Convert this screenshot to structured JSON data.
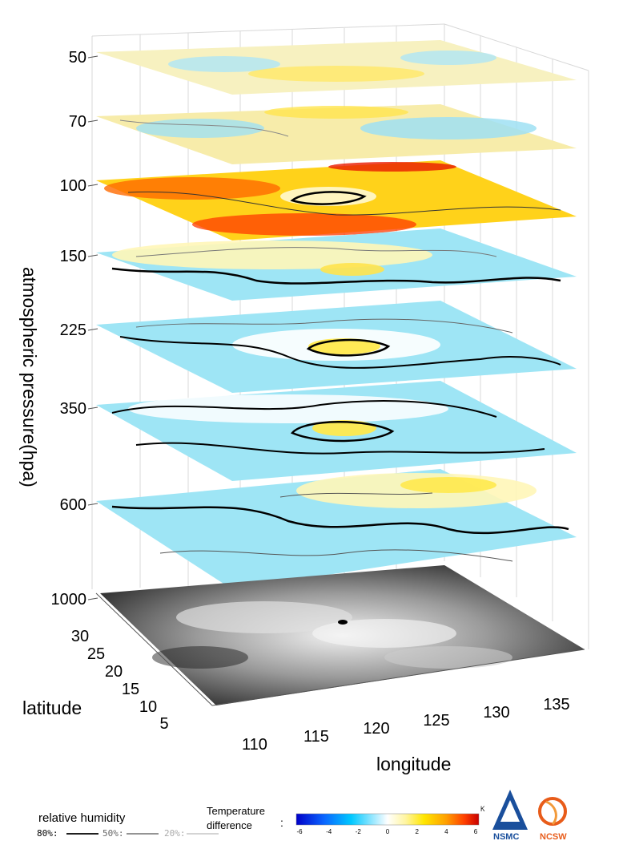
{
  "chart_data": {
    "type": "3d-layered-contour",
    "zlabel": "atmospheric pressure(hpa)",
    "xlabel": "longitude",
    "ylabel": "latitude",
    "pressure_levels": [
      "50",
      "70",
      "100",
      "150",
      "225",
      "350",
      "600",
      "1000"
    ],
    "longitude_ticks": [
      "110",
      "115",
      "120",
      "125",
      "130",
      "135"
    ],
    "latitude_ticks": [
      "30",
      "25",
      "20",
      "15",
      "10",
      "5"
    ],
    "layers": [
      {
        "level": 50,
        "dominant": "near-zero to slightly positive"
      },
      {
        "level": 70,
        "dominant": "mixed positive and negative"
      },
      {
        "level": 100,
        "dominant": "strongly positive"
      },
      {
        "level": 150,
        "dominant": "mostly negative"
      },
      {
        "level": 225,
        "dominant": "mostly negative"
      },
      {
        "level": 350,
        "dominant": "mostly negative"
      },
      {
        "level": 600,
        "dominant": "negative south, positive north"
      },
      {
        "level": 1000,
        "dominant": "cloud imagery (grayscale terrain)"
      }
    ],
    "colorbar": {
      "title": "Temperature difference",
      "unit": "K",
      "ticks": [
        "-6",
        "-4",
        "-2",
        "0",
        "2",
        "4",
        "6"
      ],
      "colors": [
        "#0000c8",
        "#0a64ff",
        "#00c8ff",
        "#bff0ff",
        "#ffffff",
        "#fff5a0",
        "#ffe600",
        "#ffa000",
        "#ff4000",
        "#c80000"
      ]
    },
    "humidity_legend": {
      "title": "relative humidity",
      "items": [
        {
          "label": "80%:",
          "color": "#000000"
        },
        {
          "label": "50%:",
          "color": "#555555"
        },
        {
          "label": "20%:",
          "color": "#aaaaaa"
        }
      ]
    }
  },
  "logos": {
    "left": {
      "text": "NSMC",
      "color": "#1a4f9c"
    },
    "right": {
      "text": "NCSW",
      "color": "#e85c1a"
    }
  }
}
